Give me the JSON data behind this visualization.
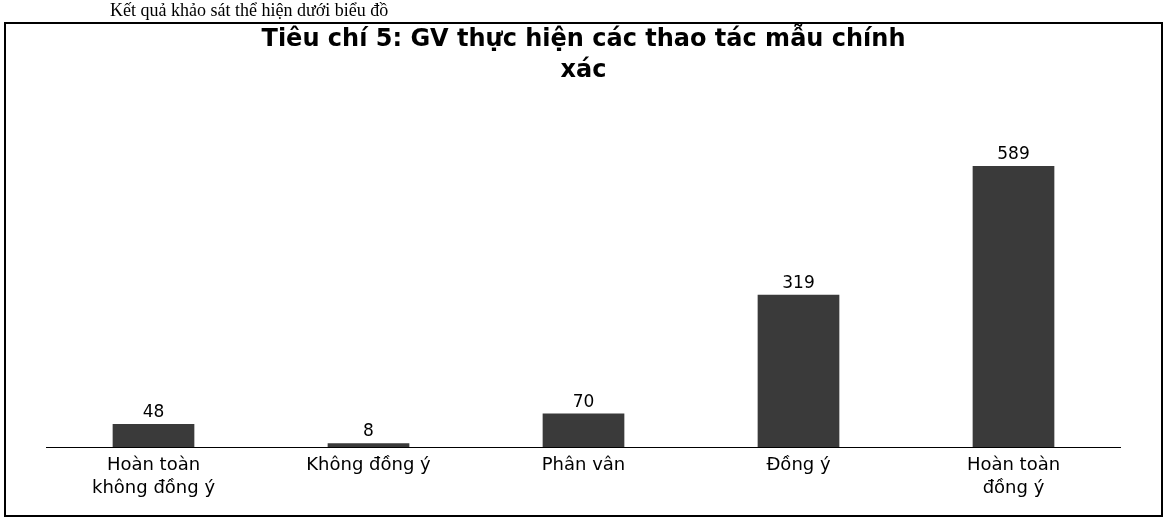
{
  "chart_data": {
    "type": "bar",
    "title": "Tiêu chí 5: GV thực hiện các thao tác mẫu chính xác",
    "categories": [
      "Hoàn toàn không đồng ý",
      "Không đồng ý",
      "Phân vân",
      "Đồng ý",
      "Hoàn toàn đồng ý"
    ],
    "values": [
      48,
      8,
      70,
      319,
      589
    ],
    "color": "#3a3a3a",
    "data_labels": true,
    "legend": false,
    "annotations": [
      "Kết quả khảo sát thể hiện dưới biểu đồ"
    ]
  }
}
